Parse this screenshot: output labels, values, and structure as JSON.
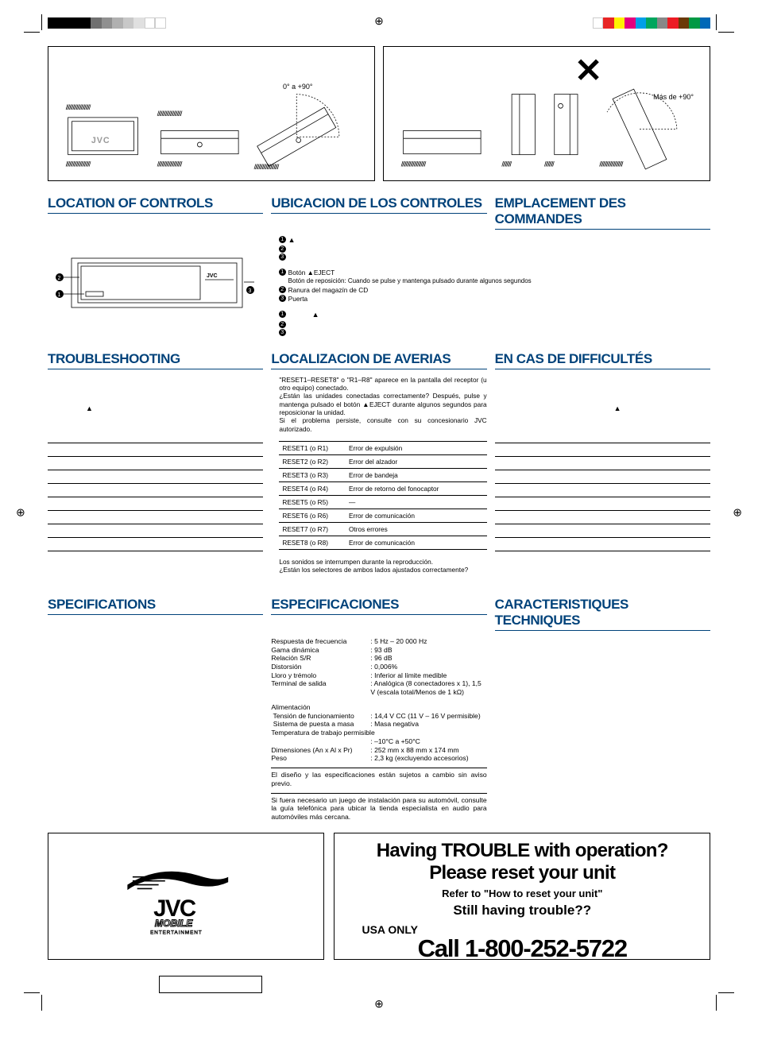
{
  "reg_colors_left": [
    "#000000",
    "#000000",
    "#000000",
    "#000000",
    "#707070",
    "#909090",
    "#b0b0b0",
    "#c8c8c8",
    "#e0e0e0",
    "#ffffff",
    "#ffffff"
  ],
  "reg_colors_right": [
    "#ffffff",
    "#e82525",
    "#fff200",
    "#e4007f",
    "#009fe8",
    "#00a65e",
    "#888888",
    "#ed1c24",
    "#6a3906",
    "#009944",
    "#0068b7"
  ],
  "diagram": {
    "angle_ok": "0° a +90°",
    "angle_bad": "Más de +90°",
    "hatch": "/////////////////////",
    "cross": "✕"
  },
  "headings": {
    "loc_en": "LOCATION OF CONTROLS",
    "loc_es": "UBICACION DE LOS CONTROLES",
    "loc_fr": "EMPLACEMENT DES COMMANDES",
    "trouble_en": "TROUBLESHOOTING",
    "trouble_es": "LOCALIZACION DE AVERIAS",
    "trouble_fr": "EN CAS DE DIFFICULTÉS",
    "spec_en": "SPECIFICATIONS",
    "spec_es": "ESPECIFICACIONES",
    "spec_fr": "CARACTERISTIQUES TECHNIQUES"
  },
  "controls_legend": {
    "en": [
      {
        "n": "1",
        "txt": "",
        "suffix": "▲"
      },
      {
        "n": "2",
        "txt": ""
      },
      {
        "n": "3",
        "txt": ""
      }
    ],
    "es": [
      {
        "n": "1",
        "txt": "Botón ▲EJECT",
        "sub": "Botón de reposición: Cuando se pulse y mantenga pulsado durante algunos segundos"
      },
      {
        "n": "2",
        "txt": "Ranura del magazín de CD"
      },
      {
        "n": "3",
        "txt": "Puerta"
      }
    ],
    "fr": [
      {
        "n": "1",
        "txt": "",
        "suffix": "▲"
      },
      {
        "n": "2",
        "txt": ""
      },
      {
        "n": "3",
        "txt": ""
      }
    ]
  },
  "trouble": {
    "en_text": "",
    "en_eject": "▲",
    "es_text1": "\"RESET1–RESET8\" o \"R1–R8\" aparece en la pantalla del receptor (u otro equipo) conectado.",
    "es_text2": "¿Están las unidades conectadas correctamente? Después, pulse y mantenga pulsado el botón ▲EJECT durante algunos segundos para reposicionar la unidad.",
    "es_text3": "Si el problema persiste, consulte con su concesionario JVC autorizado.",
    "es_text4": "Los sonidos se interrumpen durante la reproducción.",
    "es_text5": "¿Están los selectores de ambos lados ajustados correctamente?",
    "fr_eject": "▲"
  },
  "reset_table_es": [
    {
      "code": "RESET1 (o R1)",
      "cause": "Error de expulsión"
    },
    {
      "code": "RESET2 (o R2)",
      "cause": "Error del alzador"
    },
    {
      "code": "RESET3 (o R3)",
      "cause": "Error de bandeja"
    },
    {
      "code": "RESET4 (o R4)",
      "cause": "Error de retorno del fonocaptor"
    },
    {
      "code": "RESET5 (o R5)",
      "cause": "—"
    },
    {
      "code": "RESET6 (o R6)",
      "cause": "Error de comunicación"
    },
    {
      "code": "RESET7 (o R7)",
      "cause": "Otros errores"
    },
    {
      "code": "RESET8 (o R8)",
      "cause": "Error de comunicación"
    }
  ],
  "reset_table_empty": [
    {
      "code": "",
      "cause": ""
    },
    {
      "code": "",
      "cause": ""
    },
    {
      "code": "",
      "cause": ""
    },
    {
      "code": "",
      "cause": ""
    },
    {
      "code": "",
      "cause": ""
    },
    {
      "code": "",
      "cause": ""
    },
    {
      "code": "",
      "cause": ""
    },
    {
      "code": "",
      "cause": ""
    }
  ],
  "specs_es": {
    "rows": [
      {
        "l": "Respuesta de frecuencia",
        "v": ": 5 Hz – 20 000 Hz"
      },
      {
        "l": "Gama dinámica",
        "v": ": 93 dB"
      },
      {
        "l": "Relación S/R",
        "v": ": 96 dB"
      },
      {
        "l": "Distorsión",
        "v": ": 0,006%"
      },
      {
        "l": "Lloro y trémolo",
        "v": ": Inferior al límite medible"
      },
      {
        "l": "Terminal de salida",
        "v": ": Analógica (8 conectadores x 1), 1,5 V (escala total/Menos de 1 kΩ)"
      }
    ],
    "rows2": [
      {
        "l": "Alimentación",
        "v": ""
      },
      {
        "l": " Tensión de funcionamiento",
        "v": ": 14,4 V CC (11 V – 16 V permisible)"
      },
      {
        "l": " Sistema de puesta a masa",
        "v": ": Masa negativa"
      },
      {
        "l": "Temperatura de trabajo permisible",
        "v": ""
      },
      {
        "l": "",
        "v": ": –10°C a +50°C"
      },
      {
        "l": "Dimensiones (An x Al x Pr)",
        "v": ": 252 mm x 88 mm x 174 mm"
      },
      {
        "l": "Peso",
        "v": ": 2,3 kɡ (excluyendo accesorios)"
      }
    ],
    "note1": "El diseño y las especificaciones están sujetos a cambio sin aviso previo.",
    "note2": "Si fuera necesario un juego de instalación para su automóvil, consulte la guía telefónica para ubicar la tienda especialista en audio para automóviles más cercana."
  },
  "trouble_box": {
    "l1": "Having TROUBLE with operation?",
    "l2": "Please reset your unit",
    "l3": "Refer to \"How to reset your unit\"",
    "l4": "Still having trouble??",
    "l5": "USA ONLY",
    "l6": "Call 1-800-252-5722"
  },
  "jvc_text": "JVC",
  "mobile_text": "MOBILE",
  "ent_text": "ENTERTAINMENT"
}
